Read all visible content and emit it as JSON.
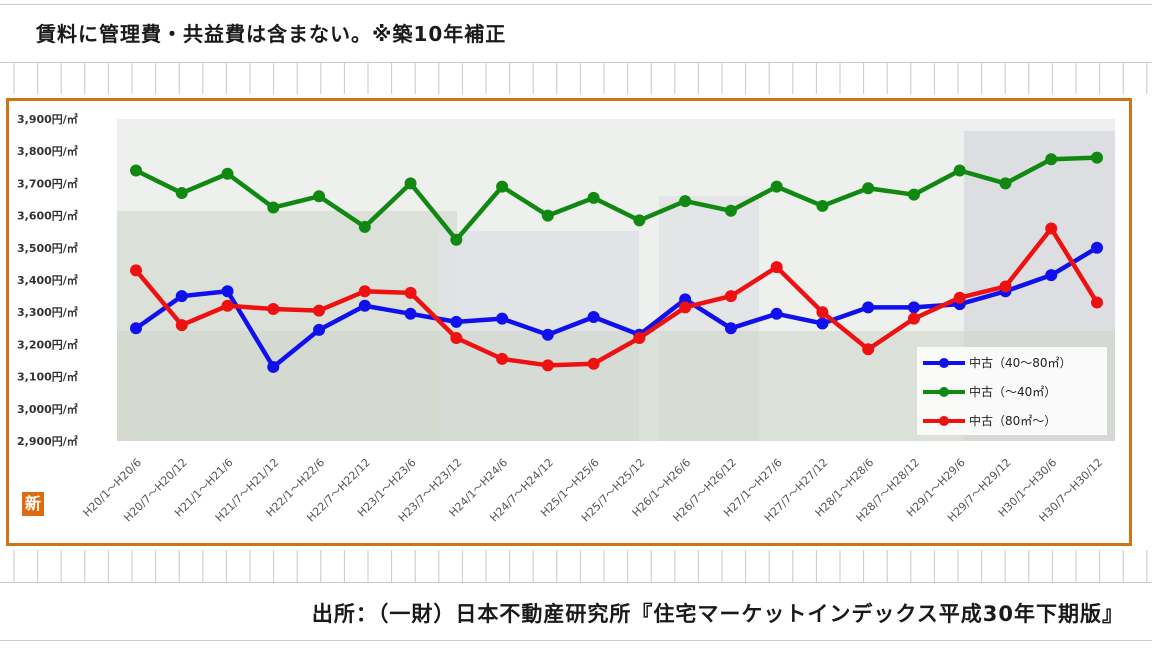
{
  "header": {
    "note": "賃料に管理費・共益費は含まない。※築10年補正"
  },
  "footer": {
    "source": "出所：（一財）日本不動産研究所『住宅マーケットインデックス平成30年下期版』"
  },
  "badge": {
    "label": "新"
  },
  "chart_data": {
    "type": "line",
    "title": "",
    "xlabel": "",
    "ylabel": "",
    "ylim": [
      2900,
      3900
    ],
    "y_ticks": [
      "3,900円/㎡",
      "3,800円/㎡",
      "3,700円/㎡",
      "3,600円/㎡",
      "3,500円/㎡",
      "3,400円/㎡",
      "3,300円/㎡",
      "3,200円/㎡",
      "3,100円/㎡",
      "3,000円/㎡",
      "2,900円/㎡"
    ],
    "y_tick_values": [
      3900,
      3800,
      3700,
      3600,
      3500,
      3400,
      3300,
      3200,
      3100,
      3000,
      2900
    ],
    "categories": [
      "H20/1～H20/6",
      "H20/7～H20/12",
      "H21/1～H21/6",
      "H21/7～H21/12",
      "H22/1～H22/6",
      "H22/7～H22/12",
      "H23/1～H23/6",
      "H23/7～H23/12",
      "H24/1～H24/6",
      "H24/7～H24/12",
      "H25/1～H25/6",
      "H25/7～H25/12",
      "H26/1～H26/6",
      "H26/7～H26/12",
      "H27/1～H27/6",
      "H27/7～H27/12",
      "H28/1～H28/6",
      "H28/7～H28/12",
      "H29/1～H29/6",
      "H29/7～H29/12",
      "H30/1～H30/6",
      "H30/7～H30/12"
    ],
    "series": [
      {
        "name": "中古（40～80㎡）",
        "color": "#1010ee",
        "values": [
          3250,
          3350,
          3365,
          3130,
          3245,
          3320,
          3295,
          3270,
          3280,
          3230,
          3285,
          3230,
          3340,
          3250,
          3295,
          3265,
          3315,
          3315,
          3325,
          3365,
          3415,
          3500
        ]
      },
      {
        "name": "中古（～40㎡）",
        "color": "#118811",
        "values": [
          3740,
          3670,
          3730,
          3625,
          3660,
          3565,
          3700,
          3525,
          3690,
          3600,
          3655,
          3585,
          3645,
          3615,
          3690,
          3630,
          3685,
          3665,
          3740,
          3700,
          3775,
          3780
        ]
      },
      {
        "name": "中古（80㎡～）",
        "color": "#ee1111",
        "values": [
          3430,
          3260,
          3320,
          3310,
          3305,
          3365,
          3360,
          3220,
          3155,
          3135,
          3140,
          3220,
          3315,
          3350,
          3440,
          3300,
          3185,
          3280,
          3345,
          3380,
          3560,
          3330
        ]
      }
    ],
    "legend_position": "bottom-right",
    "grid": false
  }
}
